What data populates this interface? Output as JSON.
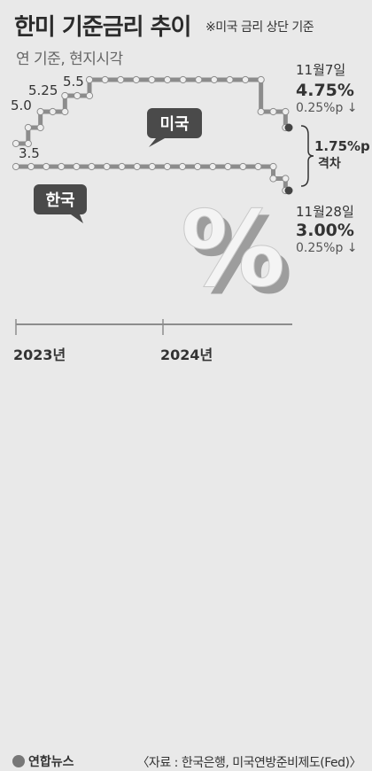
{
  "header": {
    "title": "한미 기준금리 추이",
    "note": "※미국 금리 상단 기준",
    "subtitle": "연 기준, 현지시각"
  },
  "footer": {
    "logo": "연합뉴스",
    "source": "〈자료 : 한국은행, 미국연방준비제도(Fed)〉"
  },
  "chart_data": {
    "type": "line",
    "title": "한미 기준금리 추이",
    "x_ticks": [
      "2023년",
      "2024년"
    ],
    "series": [
      {
        "name": "미국",
        "color": "#8c8c8c",
        "points": [
          {
            "x": "2023-01",
            "y": 4.5
          },
          {
            "x": "2023-02",
            "y": 4.75
          },
          {
            "x": "2023-03",
            "y": 5.0
          },
          {
            "x": "2023-05",
            "y": 5.25
          },
          {
            "x": "2023-07",
            "y": 5.5
          },
          {
            "x": "2024-09",
            "y": 5.0
          },
          {
            "x": "2024-11",
            "y": 4.75
          }
        ]
      },
      {
        "name": "한국",
        "color": "#8c8c8c",
        "points": [
          {
            "x": "2023-01",
            "y": 3.5
          },
          {
            "x": "2024-10",
            "y": 3.25
          },
          {
            "x": "2024-11",
            "y": 3.0
          }
        ]
      }
    ],
    "value_labels": [
      "5.0",
      "5.25",
      "5.5",
      "3.5"
    ],
    "annotations": {
      "us_date": "11월7일",
      "us_value": "4.75%",
      "us_change": "0.25%p ↓",
      "gap_value": "1.75%p",
      "gap_label": "격차",
      "kr_date": "11월28일",
      "kr_value": "3.00%",
      "kr_change": "0.25%p ↓"
    },
    "percent_glyph": "%"
  }
}
